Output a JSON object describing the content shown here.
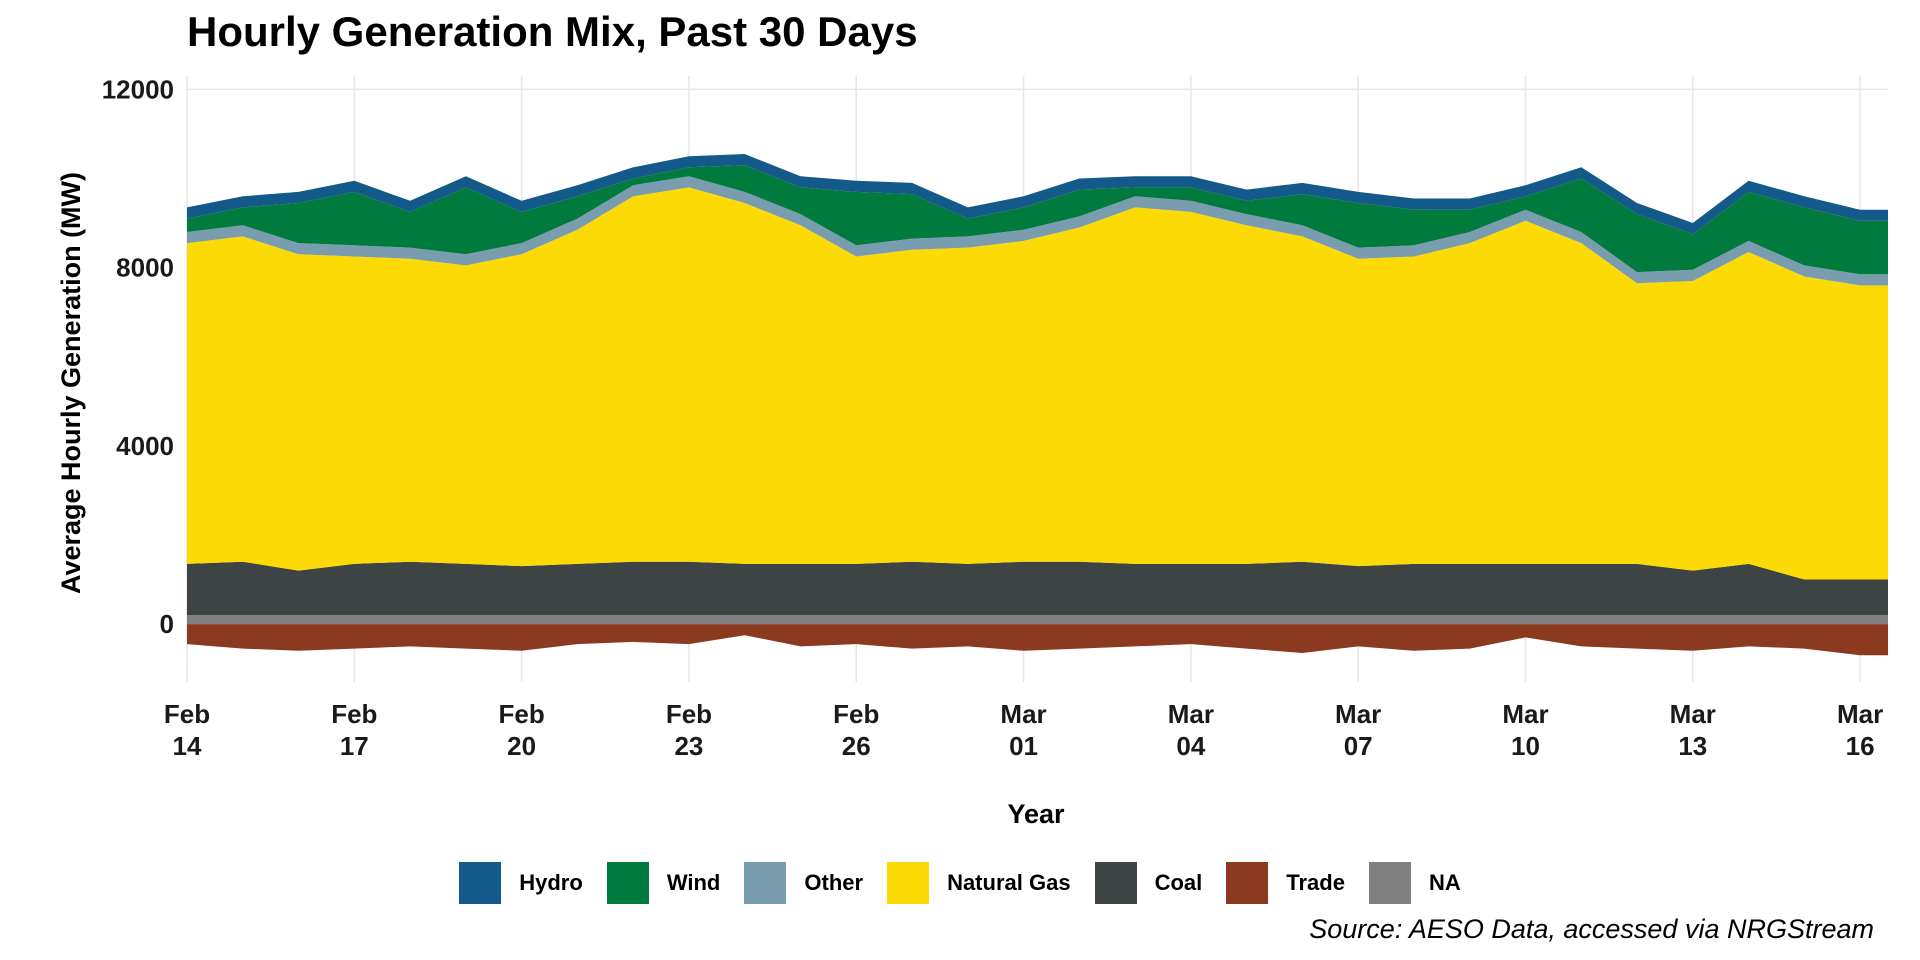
{
  "chart_data": {
    "type": "area",
    "stacked": true,
    "title": "Hourly Generation Mix, Past 30 Days",
    "xlabel": "Year",
    "ylabel": "Average Hourly Generation (MW)",
    "ylim": [
      -1300,
      12300
    ],
    "yticks": [
      0,
      4000,
      8000,
      12000
    ],
    "xlim": [
      "2023-02-14",
      "2023-03-16T12:00"
    ],
    "xticks": [
      {
        "date": "2023-02-14",
        "month": "Feb",
        "day": "14"
      },
      {
        "date": "2023-02-17",
        "month": "Feb",
        "day": "17"
      },
      {
        "date": "2023-02-20",
        "month": "Feb",
        "day": "20"
      },
      {
        "date": "2023-02-23",
        "month": "Feb",
        "day": "23"
      },
      {
        "date": "2023-02-26",
        "month": "Feb",
        "day": "26"
      },
      {
        "date": "2023-03-01",
        "month": "Mar",
        "day": "01"
      },
      {
        "date": "2023-03-04",
        "month": "Mar",
        "day": "04"
      },
      {
        "date": "2023-03-07",
        "month": "Mar",
        "day": "07"
      },
      {
        "date": "2023-03-10",
        "month": "Mar",
        "day": "10"
      },
      {
        "date": "2023-03-13",
        "month": "Mar",
        "day": "13"
      },
      {
        "date": "2023-03-16",
        "month": "Mar",
        "day": "16"
      }
    ],
    "grid": true,
    "legend_position": "bottom",
    "x": [
      "2023-02-14",
      "2023-02-15",
      "2023-02-16",
      "2023-02-17",
      "2023-02-18",
      "2023-02-19",
      "2023-02-20",
      "2023-02-21",
      "2023-02-22",
      "2023-02-23",
      "2023-02-24",
      "2023-02-25",
      "2023-02-26",
      "2023-02-27",
      "2023-02-28",
      "2023-03-01",
      "2023-03-02",
      "2023-03-03",
      "2023-03-04",
      "2023-03-05",
      "2023-03-06",
      "2023-03-07",
      "2023-03-08",
      "2023-03-09",
      "2023-03-10",
      "2023-03-11",
      "2023-03-12",
      "2023-03-13",
      "2023-03-14",
      "2023-03-15",
      "2023-03-16"
    ],
    "series": [
      {
        "name": "Trade",
        "color": "#8B3A1F",
        "values": [
          -450,
          -550,
          -600,
          -550,
          -500,
          -550,
          -600,
          -450,
          -400,
          -450,
          -250,
          -500,
          -450,
          -550,
          -500,
          -600,
          -550,
          -500,
          -450,
          -550,
          -650,
          -500,
          -600,
          -550,
          -300,
          -500,
          -550,
          -600,
          -500,
          -550,
          -700
        ]
      },
      {
        "name": "NA",
        "color": "#808080",
        "values": [
          200,
          200,
          200,
          200,
          200,
          200,
          200,
          200,
          200,
          200,
          200,
          200,
          200,
          200,
          200,
          200,
          200,
          200,
          200,
          200,
          200,
          200,
          200,
          200,
          200,
          200,
          200,
          200,
          200,
          200,
          200
        ]
      },
      {
        "name": "Coal",
        "color": "#3E4444",
        "values": [
          1150,
          1200,
          1000,
          1150,
          1200,
          1150,
          1100,
          1150,
          1200,
          1200,
          1150,
          1150,
          1150,
          1200,
          1150,
          1200,
          1200,
          1150,
          1150,
          1150,
          1200,
          1100,
          1150,
          1150,
          1150,
          1150,
          1150,
          1000,
          1150,
          800,
          800
        ]
      },
      {
        "name": "Natural Gas",
        "color": "#FCDA05",
        "values": [
          7200,
          7300,
          7100,
          6900,
          6800,
          6700,
          7000,
          7500,
          8200,
          8400,
          8100,
          7600,
          6900,
          7000,
          7100,
          7200,
          7500,
          8000,
          7900,
          7600,
          7300,
          6900,
          6900,
          7200,
          7700,
          7200,
          6300,
          6500,
          7000,
          6800,
          6600
        ]
      },
      {
        "name": "Other",
        "color": "#7A9CAF",
        "values": [
          250,
          250,
          250,
          250,
          250,
          250,
          250,
          250,
          250,
          250,
          250,
          250,
          250,
          250,
          250,
          250,
          250,
          250,
          250,
          250,
          250,
          250,
          250,
          250,
          250,
          250,
          250,
          250,
          250,
          250,
          250
        ]
      },
      {
        "name": "Wind",
        "color": "#007A3D",
        "values": [
          300,
          400,
          900,
          1200,
          800,
          1500,
          700,
          500,
          150,
          200,
          600,
          600,
          1200,
          1000,
          400,
          500,
          600,
          200,
          300,
          300,
          700,
          1000,
          800,
          500,
          300,
          1200,
          1300,
          800,
          1100,
          1300,
          1200
        ]
      },
      {
        "name": "Hydro",
        "color": "#135A8A",
        "values": [
          250,
          250,
          250,
          250,
          250,
          250,
          250,
          250,
          250,
          250,
          250,
          250,
          250,
          250,
          250,
          250,
          250,
          250,
          250,
          250,
          250,
          250,
          250,
          250,
          250,
          250,
          250,
          250,
          250,
          250,
          250
        ]
      }
    ]
  },
  "legend": {
    "items": [
      {
        "label": "Hydro",
        "color": "#135A8A"
      },
      {
        "label": "Wind",
        "color": "#007A3D"
      },
      {
        "label": "Other",
        "color": "#7A9CAF"
      },
      {
        "label": "Natural Gas",
        "color": "#FCDA05"
      },
      {
        "label": "Coal",
        "color": "#3E4444"
      },
      {
        "label": "Trade",
        "color": "#8B3A1F"
      },
      {
        "label": "NA",
        "color": "#808080"
      }
    ]
  },
  "source": "Source: AESO Data, accessed via NRGStream"
}
